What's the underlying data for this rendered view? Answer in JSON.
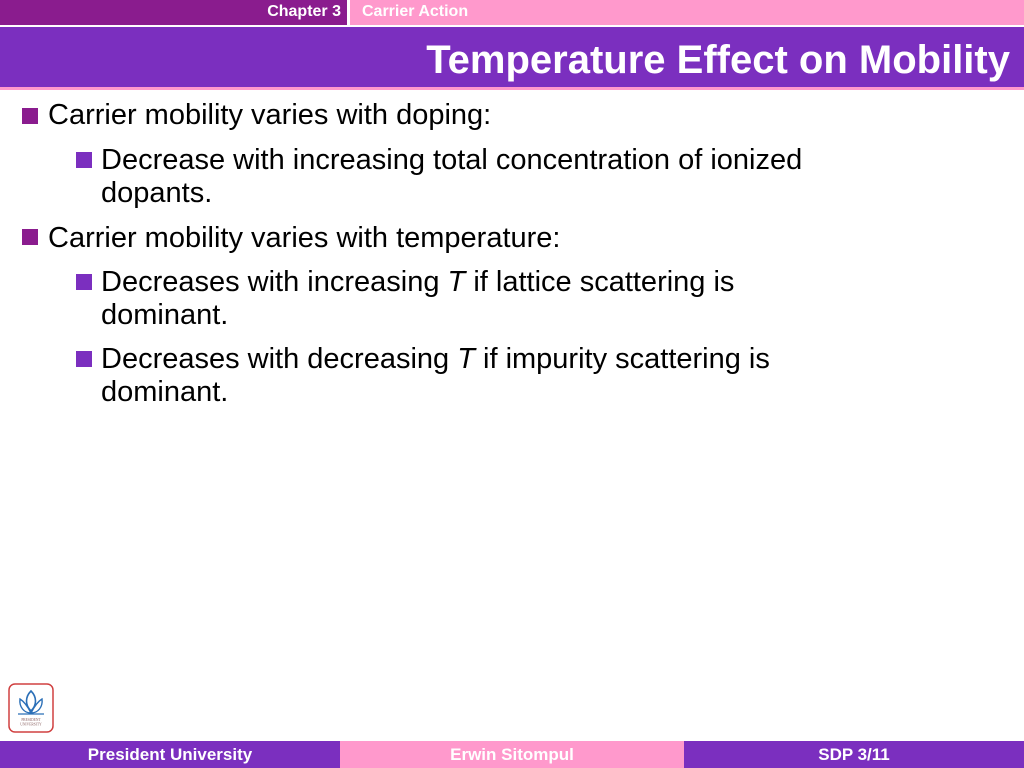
{
  "header": {
    "chapter": "Chapter 3",
    "section": "Carrier Action",
    "title": "Temperature Effect on Mobility"
  },
  "bullets": [
    {
      "text": "Carrier mobility varies with doping:",
      "sub": [
        {
          "line1": "Decrease with increasing total concentration of ionized",
          "line2": "dopants."
        }
      ]
    },
    {
      "text": "Carrier mobility varies with temperature:",
      "sub": [
        {
          "pre": "Decreases with increasing ",
          "var": "T",
          "post": " if lattice scattering is",
          "line2": "dominant."
        },
        {
          "pre": "Decreases with decreasing ",
          "var": "T",
          "post": " if impurity scattering is",
          "line2": "dominant."
        }
      ]
    }
  ],
  "footer": {
    "left": "President University",
    "center": "Erwin Sitompul",
    "right": "SDP 3/11"
  },
  "logo": {
    "text": "PRESIDENT UNIVERSITY",
    "icon": "president-university-logo-icon"
  },
  "colors": {
    "purple_dark": "#8a1c8e",
    "purple": "#7b2fbf",
    "pink": "#ff99cc"
  }
}
